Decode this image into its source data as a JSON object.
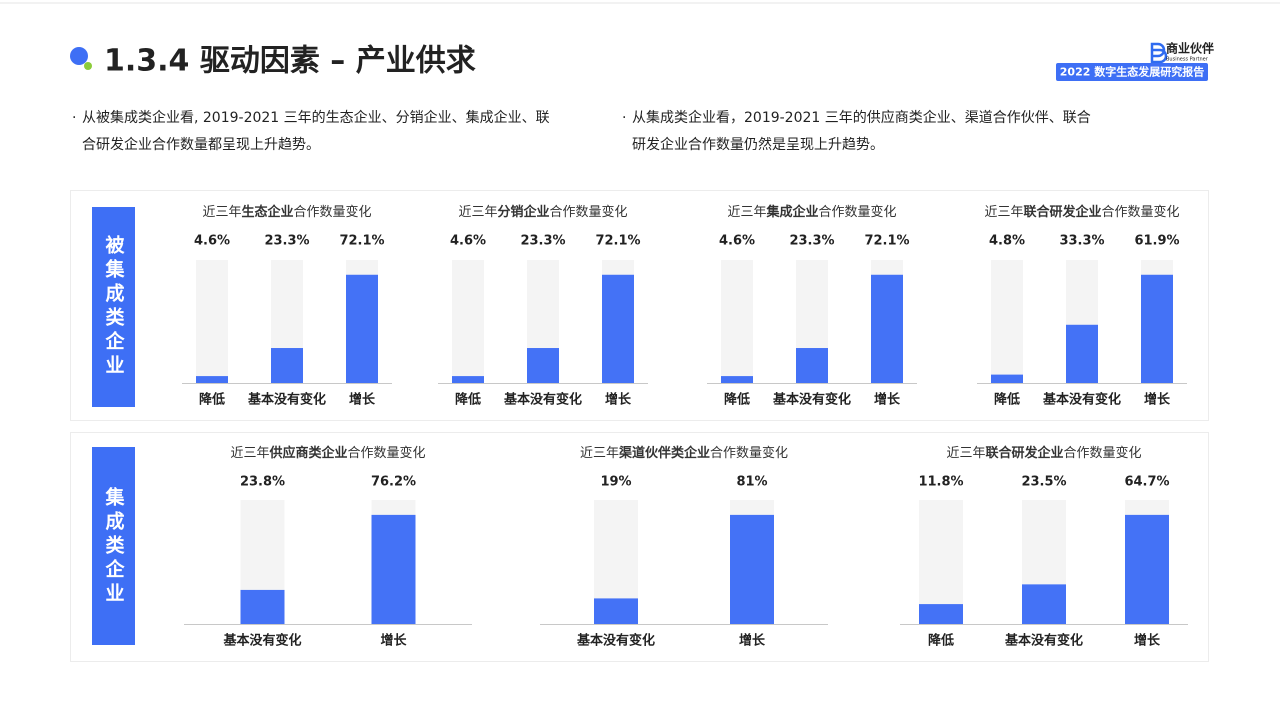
{
  "header": {
    "title": "1.3.4 驱动因素 – 产业供求",
    "logo": "商业伙伴",
    "logo_sub": "Business Partner",
    "badge": "2022 数字生态发展研究报告"
  },
  "bullets": [
    [
      "从被集成类企业看, 2019-2021 三年的生态企业、分销企业、集成企业、联",
      "合研发企业合作数量都呈现上升趋势。"
    ],
    [
      "从集成类企业看，2019-2021 三年的供应商类企业、渠道合作伙伴、联合",
      "研发企业合作数量仍然是呈现上升趋势。"
    ]
  ],
  "panels": [
    {
      "label": "被集成类企业"
    },
    {
      "label": "集成类企业"
    }
  ],
  "chart_data": [
    {
      "type": "bar",
      "title": [
        "近三年",
        "生态企业",
        "合作数量变化"
      ],
      "categories": [
        "降低",
        "基本没有变化",
        "增长"
      ],
      "values": [
        4.6,
        23.3,
        72.1
      ],
      "value_labels": [
        "4.6%",
        "23.3%",
        "72.1%"
      ],
      "color": "#4472f6"
    },
    {
      "type": "bar",
      "title": [
        "近三年",
        "分销企业",
        "合作数量变化"
      ],
      "categories": [
        "降低",
        "基本没有变化",
        "增长"
      ],
      "values": [
        4.6,
        23.3,
        72.1
      ],
      "value_labels": [
        "4.6%",
        "23.3%",
        "72.1%"
      ],
      "color": "#4472f6"
    },
    {
      "type": "bar",
      "title": [
        "近三年",
        "集成企业",
        "合作数量变化"
      ],
      "categories": [
        "降低",
        "基本没有变化",
        "增长"
      ],
      "values": [
        4.6,
        23.3,
        72.1
      ],
      "value_labels": [
        "4.6%",
        "23.3%",
        "72.1%"
      ],
      "color": "#4472f6"
    },
    {
      "type": "bar",
      "title": [
        "近三年",
        "联合研发企业",
        "合作数量变化"
      ],
      "categories": [
        "降低",
        "基本没有变化",
        "增长"
      ],
      "values": [
        4.8,
        33.3,
        61.9
      ],
      "value_labels": [
        "4.8%",
        "33.3%",
        "61.9%"
      ],
      "color": "#4472f6"
    },
    {
      "type": "bar",
      "title": [
        "近三年",
        "供应商类企业",
        "合作数量变化"
      ],
      "categories": [
        "基本没有变化",
        "增长"
      ],
      "values": [
        23.8,
        76.2
      ],
      "value_labels": [
        "23.8%",
        "76.2%"
      ],
      "color": "#4472f6"
    },
    {
      "type": "bar",
      "title": [
        "近三年",
        "渠道伙伴类企业",
        "合作数量变化"
      ],
      "categories": [
        "基本没有变化",
        "增长"
      ],
      "values": [
        19,
        81
      ],
      "value_labels": [
        "19%",
        "81%"
      ],
      "color": "#4472f6"
    },
    {
      "type": "bar",
      "title": [
        "近三年",
        "联合研发企业",
        "合作数量变化"
      ],
      "categories": [
        "降低",
        "基本没有变化",
        "增长"
      ],
      "values": [
        11.8,
        23.5,
        64.7
      ],
      "value_labels": [
        "11.8%",
        "23.5%",
        "64.7%"
      ],
      "color": "#4472f6"
    }
  ]
}
